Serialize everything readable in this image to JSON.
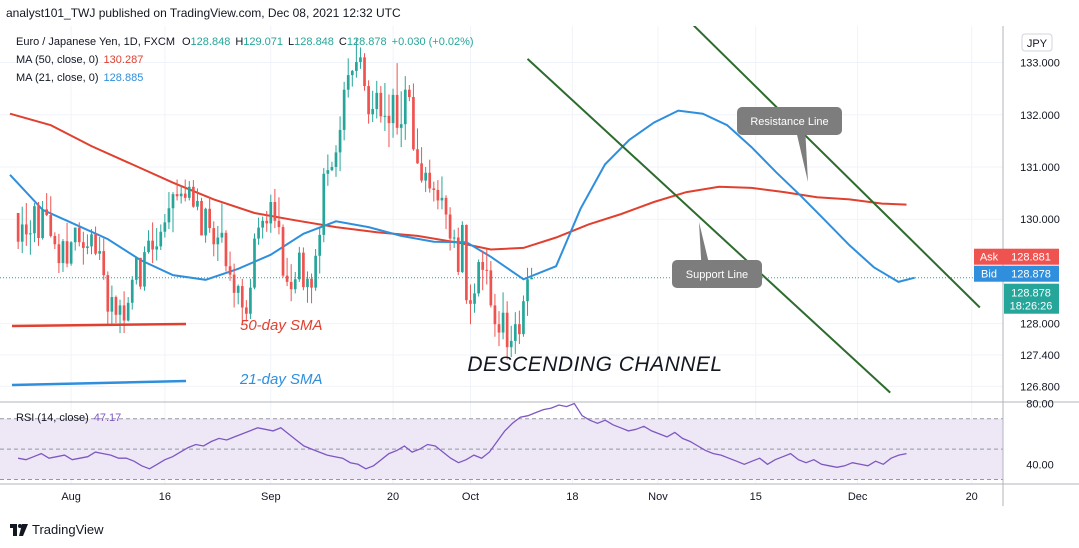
{
  "header": {
    "publish_line": "analyst101_TWJ published on TradingView.com, Dec 08, 2021 12:32 UTC"
  },
  "legend": {
    "symbol": "Euro / Japanese Yen, 1D, FXCM",
    "ohlc": [
      {
        "key": "O",
        "value": "128.848"
      },
      {
        "key": "H",
        "value": "129.071"
      },
      {
        "key": "L",
        "value": "128.848"
      },
      {
        "key": "C",
        "value": "128.878"
      }
    ],
    "change": "+0.030 (+0.02%)",
    "ma50_label": "MA (50, close, 0)",
    "ma50_value": "130.287",
    "ma21_label": "MA (21, close, 0)",
    "ma21_value": "128.885"
  },
  "currency_button": "JPY",
  "price_badges": {
    "ask_label": "Ask",
    "ask_value": "128.881",
    "bid_label": "Bid",
    "bid_value": "128.878",
    "last_value": "128.878",
    "countdown": "18:26:26"
  },
  "annotations": {
    "resistance": "Resistance Line",
    "support": "Support Line",
    "channel": "DESCENDING CHANNEL",
    "sma50": "50-day SMA",
    "sma21": "21-day SMA"
  },
  "rsi": {
    "label": "RSI (14, close)",
    "value": "47.17",
    "ticks": [
      {
        "label": "80.00",
        "value": 80
      },
      {
        "label": "40.00",
        "value": 40
      }
    ],
    "band": [
      30,
      70
    ],
    "ylim": [
      27,
      81
    ],
    "values": [
      44,
      43,
      45,
      47,
      44,
      45,
      46,
      43,
      44,
      45,
      48,
      47,
      46,
      44,
      44,
      42,
      39,
      37,
      40,
      43,
      45,
      48,
      51,
      53,
      52,
      55,
      57,
      56,
      58,
      60,
      62,
      64,
      63,
      62,
      64,
      60,
      56,
      52,
      50,
      48,
      46,
      45,
      44,
      41,
      40,
      37,
      39,
      43,
      47,
      49,
      52,
      48,
      50,
      53,
      52,
      48,
      44,
      41,
      43,
      46,
      44,
      48,
      55,
      62,
      67,
      71,
      72,
      74,
      76,
      77,
      79,
      78,
      80,
      72,
      69,
      67,
      69,
      66,
      64,
      62,
      63,
      65,
      62,
      60,
      58,
      61,
      57,
      55,
      52,
      49,
      47,
      46,
      44,
      42,
      40,
      42,
      44,
      40,
      43,
      45,
      47,
      43,
      41,
      43,
      40,
      39,
      38,
      39,
      41,
      40,
      39,
      42,
      40,
      44,
      46,
      47
    ]
  },
  "x_axis": {
    "ticks": [
      {
        "label": "Aug",
        "index": 15
      },
      {
        "label": "16",
        "index": 38
      },
      {
        "label": "Sep",
        "index": 64
      },
      {
        "label": "20",
        "index": 94
      },
      {
        "label": "Oct",
        "index": 113
      },
      {
        "label": "18",
        "index": 138
      },
      {
        "label": "Nov",
        "index": 159
      },
      {
        "label": "15",
        "index": 183
      },
      {
        "label": "Dec",
        "index": 208
      },
      {
        "label": "20",
        "index": 236
      }
    ]
  },
  "colors": {
    "up": "#26a69a",
    "down": "#ef5350",
    "ma50": "#e0402f",
    "ma21": "#2f8fdd",
    "channel": "#2e6b2e",
    "annotation_bg": "#7d7d7d",
    "rsi_line": "#7e57c2",
    "rsi_band": "#ede7f6"
  },
  "footer": {
    "brand": "TradingView"
  },
  "chart_data": {
    "type": "candlestick",
    "title": "Euro / Japanese Yen, 1D, FXCM",
    "y_ticks": [
      "133.000",
      "132.000",
      "131.000",
      "130.000",
      "128.000",
      "127.400",
      "126.800"
    ],
    "ylim": [
      126.5,
      133.7
    ],
    "x_index_range": [
      0,
      240
    ],
    "series_ohlc": {
      "first_index": 2,
      "candles": [
        [
          130.12,
          130.12,
          129.43,
          129.57
        ],
        [
          129.57,
          130.24,
          129.35,
          129.9
        ],
        [
          129.9,
          130.31,
          129.49,
          129.71
        ],
        [
          129.71,
          129.98,
          129.32,
          129.73
        ],
        [
          129.73,
          130.31,
          129.56,
          130.25
        ],
        [
          130.25,
          130.33,
          129.49,
          129.64
        ],
        [
          129.64,
          130.35,
          129.61,
          130.19
        ],
        [
          130.19,
          130.5,
          130.06,
          130.08
        ],
        [
          130.08,
          130.44,
          129.65,
          129.68
        ],
        [
          129.68,
          129.75,
          129.43,
          129.52
        ],
        [
          129.52,
          129.72,
          128.97,
          129.16
        ],
        [
          129.16,
          129.62,
          128.99,
          129.58
        ],
        [
          129.58,
          129.93,
          129.08,
          129.15
        ],
        [
          129.15,
          129.58,
          129.11,
          129.56
        ],
        [
          129.56,
          129.84,
          129.4,
          129.84
        ],
        [
          129.84,
          129.94,
          129.48,
          129.56
        ],
        [
          129.56,
          129.76,
          129.13,
          129.45
        ],
        [
          129.45,
          129.71,
          129.33,
          129.48
        ],
        [
          129.48,
          129.81,
          129.33,
          129.71
        ],
        [
          129.71,
          129.86,
          129.31,
          129.34
        ],
        [
          129.34,
          129.66,
          129.22,
          129.39
        ],
        [
          129.39,
          129.63,
          128.84,
          128.93
        ],
        [
          128.93,
          129.0,
          127.97,
          128.23
        ],
        [
          128.23,
          128.73,
          127.98,
          128.51
        ],
        [
          128.51,
          128.54,
          128.01,
          128.17
        ],
        [
          128.17,
          128.46,
          127.82,
          128.35
        ],
        [
          128.35,
          128.62,
          127.82,
          128.06
        ],
        [
          128.06,
          128.51,
          128.04,
          128.4
        ],
        [
          128.4,
          128.91,
          128.27,
          128.84
        ],
        [
          128.84,
          129.28,
          128.75,
          129.26
        ],
        [
          129.26,
          129.26,
          128.66,
          128.71
        ],
        [
          128.71,
          129.48,
          128.63,
          129.37
        ],
        [
          129.37,
          129.79,
          129.34,
          129.59
        ],
        [
          129.59,
          129.94,
          129.16,
          129.42
        ],
        [
          129.42,
          129.83,
          129.21,
          129.48
        ],
        [
          129.48,
          129.9,
          129.41,
          129.76
        ],
        [
          129.76,
          130.1,
          129.65,
          129.94
        ],
        [
          129.94,
          130.52,
          129.81,
          130.21
        ],
        [
          130.21,
          130.52,
          129.75,
          130.48
        ],
        [
          130.48,
          130.76,
          130.36,
          130.44
        ],
        [
          130.44,
          130.65,
          130.3,
          130.49
        ],
        [
          130.49,
          130.76,
          130.34,
          130.41
        ],
        [
          130.41,
          130.73,
          130.36,
          130.62
        ],
        [
          130.62,
          130.75,
          130.22,
          130.24
        ],
        [
          130.24,
          130.59,
          130.17,
          130.35
        ],
        [
          130.35,
          130.41,
          129.69,
          129.69
        ],
        [
          129.69,
          130.22,
          129.55,
          130.2
        ],
        [
          130.2,
          130.43,
          129.74,
          129.83
        ],
        [
          129.83,
          129.96,
          129.29,
          129.52
        ],
        [
          129.52,
          129.87,
          129.2,
          129.65
        ],
        [
          129.65,
          130.3,
          129.55,
          129.74
        ],
        [
          129.74,
          129.79,
          129.0,
          129.1
        ],
        [
          129.1,
          129.38,
          128.82,
          128.94
        ],
        [
          128.94,
          129.15,
          128.31,
          128.59
        ],
        [
          128.59,
          128.75,
          128.37,
          128.72
        ],
        [
          128.72,
          128.86,
          128.01,
          128.31
        ],
        [
          128.31,
          128.45,
          128.04,
          128.19
        ],
        [
          128.19,
          128.86,
          128.09,
          128.69
        ],
        [
          128.69,
          129.73,
          128.66,
          129.63
        ],
        [
          129.63,
          130.03,
          129.51,
          129.84
        ],
        [
          129.84,
          130.05,
          129.63,
          129.97
        ],
        [
          129.97,
          130.16,
          129.76,
          129.92
        ],
        [
          129.92,
          130.47,
          129.74,
          130.33
        ],
        [
          130.33,
          130.58,
          129.83,
          129.97
        ],
        [
          129.97,
          130.42,
          129.71,
          129.85
        ],
        [
          129.85,
          129.9,
          128.88,
          128.92
        ],
        [
          128.92,
          129.26,
          128.72,
          128.8
        ],
        [
          128.8,
          129.14,
          128.43,
          128.66
        ],
        [
          128.66,
          128.99,
          128.58,
          128.85
        ],
        [
          128.85,
          129.47,
          128.8,
          129.36
        ],
        [
          129.36,
          129.46,
          128.64,
          128.7
        ],
        [
          128.7,
          129.0,
          128.4,
          128.86
        ],
        [
          128.86,
          128.96,
          128.39,
          128.69
        ],
        [
          128.69,
          129.43,
          128.63,
          129.3
        ],
        [
          129.3,
          129.83,
          128.96,
          129.7
        ],
        [
          129.7,
          130.98,
          129.56,
          130.87
        ],
        [
          130.87,
          131.24,
          130.64,
          130.94
        ],
        [
          130.94,
          131.1,
          130.92,
          131.0
        ],
        [
          131.0,
          131.42,
          130.81,
          131.28
        ],
        [
          131.28,
          131.97,
          130.92,
          131.71
        ],
        [
          131.71,
          132.63,
          131.51,
          132.48
        ],
        [
          132.48,
          133.08,
          132.33,
          132.76
        ],
        [
          132.76,
          132.86,
          132.54,
          132.84
        ],
        [
          132.84,
          133.46,
          132.71,
          133.01
        ],
        [
          133.01,
          133.29,
          132.88,
          133.1
        ],
        [
          133.1,
          133.18,
          132.46,
          132.55
        ],
        [
          132.55,
          132.66,
          131.83,
          132.01
        ],
        [
          132.01,
          132.46,
          131.86,
          132.11
        ],
        [
          132.11,
          132.65,
          131.93,
          132.42
        ],
        [
          132.42,
          132.55,
          131.85,
          131.97
        ],
        [
          131.97,
          132.61,
          131.69,
          131.98
        ],
        [
          131.98,
          132.39,
          131.38,
          131.84
        ],
        [
          131.84,
          132.5,
          131.56,
          132.38
        ],
        [
          132.38,
          132.99,
          131.62,
          131.75
        ],
        [
          131.75,
          132.45,
          131.38,
          131.82
        ],
        [
          131.82,
          132.74,
          131.52,
          132.48
        ],
        [
          132.48,
          132.57,
          132.26,
          132.34
        ],
        [
          132.34,
          132.6,
          131.31,
          131.34
        ],
        [
          131.34,
          131.74,
          131.06,
          131.07
        ],
        [
          131.07,
          131.38,
          130.7,
          130.74
        ],
        [
          130.74,
          131.0,
          130.52,
          130.89
        ],
        [
          130.89,
          131.14,
          130.51,
          130.59
        ],
        [
          130.59,
          130.72,
          130.34,
          130.56
        ],
        [
          130.56,
          130.75,
          130.19,
          130.36
        ],
        [
          130.36,
          130.82,
          130.19,
          130.41
        ],
        [
          130.41,
          130.46,
          129.81,
          130.09
        ],
        [
          130.09,
          130.23,
          129.4,
          129.63
        ],
        [
          129.63,
          129.8,
          129.45,
          129.65
        ],
        [
          129.65,
          129.84,
          128.93,
          128.99
        ],
        [
          128.99,
          129.96,
          128.97,
          129.89
        ],
        [
          129.89,
          129.9,
          128.38,
          128.45
        ],
        [
          128.45,
          128.75,
          127.99,
          128.38
        ],
        [
          128.38,
          128.77,
          128.21,
          128.58
        ],
        [
          128.58,
          129.23,
          128.52,
          129.18
        ],
        [
          129.18,
          129.4,
          128.64,
          129.03
        ],
        [
          129.03,
          129.42,
          128.75,
          129.02
        ],
        [
          129.02,
          129.2,
          128.31,
          128.35
        ],
        [
          128.35,
          128.57,
          127.75,
          127.99
        ],
        [
          127.99,
          128.24,
          127.57,
          127.83
        ],
        [
          127.83,
          128.6,
          127.7,
          128.21
        ],
        [
          128.21,
          128.43,
          127.31,
          127.55
        ],
        [
          127.55,
          127.96,
          127.36,
          127.67
        ],
        [
          127.67,
          128.22,
          127.42,
          127.99
        ],
        [
          127.99,
          128.25,
          127.61,
          127.8
        ],
        [
          127.8,
          128.54,
          127.75,
          128.43
        ],
        [
          128.43,
          129.07,
          128.15,
          128.85
        ],
        [
          128.85,
          129.07,
          128.85,
          128.88
        ]
      ]
    },
    "ma_lines": [
      {
        "name": "MA (50, close, 0)",
        "color_key": "ma50",
        "points": [
          [
            0,
            132.02
          ],
          [
            10,
            131.8
          ],
          [
            20,
            131.4
          ],
          [
            30,
            131.05
          ],
          [
            40,
            130.7
          ],
          [
            50,
            130.38
          ],
          [
            60,
            130.12
          ],
          [
            70,
            129.98
          ],
          [
            80,
            129.85
          ],
          [
            90,
            129.75
          ],
          [
            100,
            129.68
          ],
          [
            110,
            129.55
          ],
          [
            118,
            129.42
          ],
          [
            126,
            129.45
          ],
          [
            134,
            129.65
          ],
          [
            142,
            129.9
          ],
          [
            150,
            130.1
          ],
          [
            158,
            130.33
          ],
          [
            166,
            130.52
          ],
          [
            174,
            130.62
          ],
          [
            182,
            130.6
          ],
          [
            190,
            130.52
          ],
          [
            198,
            130.42
          ],
          [
            206,
            130.38
          ],
          [
            214,
            130.3
          ],
          [
            220,
            130.28
          ]
        ]
      },
      {
        "name": "MA (21, close, 0)",
        "color_key": "ma21",
        "points": [
          [
            0,
            130.85
          ],
          [
            8,
            130.18
          ],
          [
            16,
            129.9
          ],
          [
            24,
            129.62
          ],
          [
            32,
            129.22
          ],
          [
            40,
            128.93
          ],
          [
            48,
            128.84
          ],
          [
            56,
            129.05
          ],
          [
            64,
            129.32
          ],
          [
            72,
            129.72
          ],
          [
            80,
            129.96
          ],
          [
            88,
            129.85
          ],
          [
            96,
            129.68
          ],
          [
            104,
            129.57
          ],
          [
            112,
            129.56
          ],
          [
            118,
            129.28
          ],
          [
            126,
            128.85
          ],
          [
            134,
            129.1
          ],
          [
            140,
            130.2
          ],
          [
            146,
            131.05
          ],
          [
            152,
            131.52
          ],
          [
            158,
            131.85
          ],
          [
            164,
            132.08
          ],
          [
            170,
            132.02
          ],
          [
            176,
            131.8
          ],
          [
            182,
            131.38
          ],
          [
            188,
            130.9
          ],
          [
            194,
            130.45
          ],
          [
            200,
            129.98
          ],
          [
            206,
            129.5
          ],
          [
            212,
            129.08
          ],
          [
            218,
            128.8
          ],
          [
            222,
            128.88
          ]
        ]
      }
    ],
    "channel_lines": [
      {
        "from": [
          151,
          135.0
        ],
        "to": [
          238,
          128.31
        ]
      },
      {
        "from": [
          127,
          133.07
        ],
        "to": [
          216,
          126.68
        ]
      }
    ],
    "legend_sample_lines": [
      {
        "name": "50-day SMA",
        "color_key": "ma50"
      },
      {
        "name": "21-day SMA",
        "color_key": "ma21"
      }
    ]
  }
}
